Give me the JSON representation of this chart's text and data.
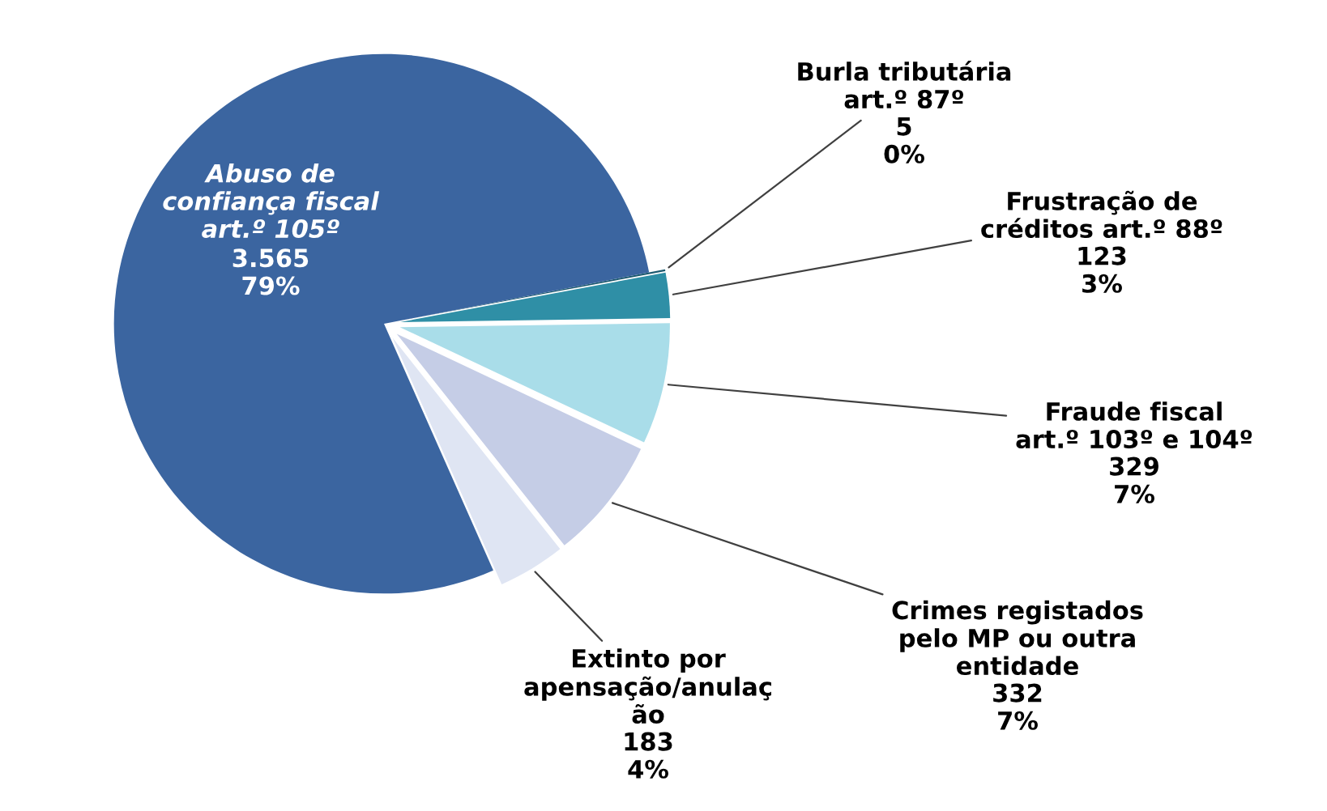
{
  "chart_data": {
    "type": "pie",
    "categories": [
      "Burla tributária\nart.º 87º",
      "Frustração de\ncréditos art.º 88º",
      "Fraude fiscal\nart.º 103º e 104º",
      "Crimes registados\npelo MP ou outra\nentidade",
      "Extinto por\napensação/anulaç\não",
      "Abuso de\nconfiança fiscal\nart.º 105º"
    ],
    "values": [
      5,
      123,
      329,
      332,
      183,
      3565
    ],
    "colors": [
      "#1d5a70",
      "#2f8fa6",
      "#a9dde9",
      "#c5cde6",
      "#dfe5f3",
      "#3b65a0"
    ],
    "value_labels": [
      "5\n0%",
      "123\n3%",
      "329\n7%",
      "332\n7%",
      "183\n4%",
      "3.565\n79%"
    ],
    "legend": false
  }
}
